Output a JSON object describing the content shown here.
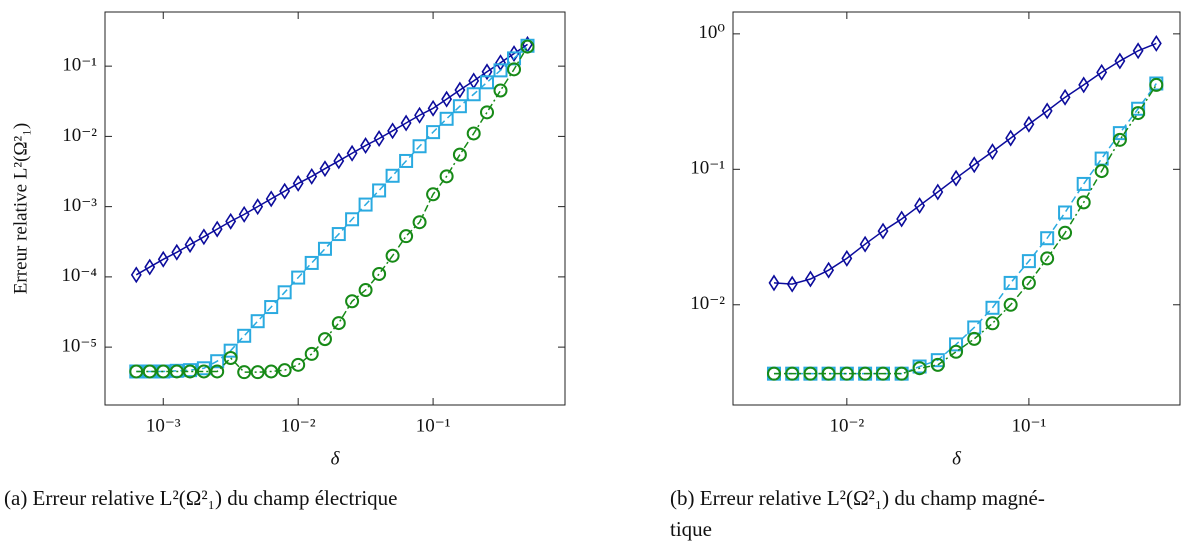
{
  "chart_data": [
    {
      "type": "line",
      "xlabel": "δ",
      "ylabel": "Erreur relative L²(Ω²₁)",
      "caption": [
        "(a)  Erreur relative L²(Ω²₁) du champ électrique"
      ],
      "log_x": true,
      "log_y": true,
      "xlim": [
        0.00037,
        0.95
      ],
      "ylim": [
        1.5e-06,
        0.59
      ],
      "xticks": [
        {
          "value": 0.001,
          "label": "10⁻³"
        },
        {
          "value": 0.01,
          "label": "10⁻²"
        },
        {
          "value": 0.1,
          "label": "10⁻¹"
        }
      ],
      "yticks": [
        {
          "value": 1e-05,
          "label": "10⁻⁵"
        },
        {
          "value": 0.0001,
          "label": "10⁻⁴"
        },
        {
          "value": 0.001,
          "label": "10⁻³"
        },
        {
          "value": 0.01,
          "label": "10⁻²"
        },
        {
          "value": 0.1,
          "label": "10⁻¹"
        }
      ],
      "x": [
        0.000631,
        0.000794,
        0.001,
        0.00126,
        0.00158,
        0.002,
        0.00251,
        0.00316,
        0.00398,
        0.00501,
        0.00631,
        0.00794,
        0.01,
        0.0126,
        0.0158,
        0.02,
        0.0251,
        0.0316,
        0.0398,
        0.0501,
        0.0631,
        0.0794,
        0.1,
        0.126,
        0.158,
        0.2,
        0.251,
        0.316,
        0.398,
        0.501
      ],
      "series": [
        {
          "color": "#0c0c9c",
          "marker": "diamond",
          "dash": "solid",
          "values": [
            0.000107,
            0.000138,
            0.000178,
            0.000224,
            0.000288,
            0.000372,
            0.000479,
            0.000617,
            0.000776,
            0.001,
            0.00129,
            0.00166,
            0.00214,
            0.00269,
            0.00347,
            0.00447,
            0.00575,
            0.00741,
            0.00933,
            0.012,
            0.0155,
            0.02,
            0.0251,
            0.0339,
            0.0457,
            0.0617,
            0.0832,
            0.112,
            0.151,
            0.204
          ]
        },
        {
          "color": "#2aaae0",
          "marker": "square",
          "dash": "dashed",
          "values": [
            4.5e-06,
            4.5e-06,
            4.5e-06,
            4.6e-06,
            4.7e-06,
            5e-06,
            6.3e-06,
            8.9e-06,
            1.45e-05,
            2.34e-05,
            3.72e-05,
            6.03e-05,
            9.77e-05,
            0.000158,
            0.000251,
            0.000407,
            0.000661,
            0.00107,
            0.0017,
            0.00275,
            0.00447,
            0.00724,
            0.0115,
            0.0178,
            0.0269,
            0.0398,
            0.0589,
            0.0871,
            0.129,
            0.195
          ]
        },
        {
          "color": "#178a17",
          "marker": "circle",
          "dash": "dashdot",
          "values": [
            4.5e-06,
            4.5e-06,
            4.5e-06,
            4.5e-06,
            4.5e-06,
            4.5e-06,
            4.5e-06,
            7e-06,
            4.4e-06,
            4.4e-06,
            4.5e-06,
            4.7e-06,
            5.6e-06,
            8e-06,
            1.3e-05,
            2.2e-05,
            4.5e-05,
            6.5e-05,
            0.00011,
            0.0002,
            0.00038,
            0.0006,
            0.0015,
            0.0027,
            0.0055,
            0.011,
            0.022,
            0.045,
            0.09,
            0.19
          ]
        }
      ]
    },
    {
      "type": "line",
      "xlabel": "δ",
      "caption": [
        "(b)  Erreur relative L²(Ω²₁) du champ magné-",
        "tique"
      ],
      "log_x": true,
      "log_y": true,
      "xlim": [
        0.00237,
        0.676
      ],
      "ylim": [
        0.00182,
        1.45
      ],
      "xticks": [
        {
          "value": 0.01,
          "label": "10⁻²"
        },
        {
          "value": 0.1,
          "label": "10⁻¹"
        }
      ],
      "yticks": [
        {
          "value": 0.01,
          "label": "10⁻²"
        },
        {
          "value": 0.1,
          "label": "10⁻¹"
        },
        {
          "value": 1,
          "label": "10⁰"
        }
      ],
      "x": [
        0.00398,
        0.00501,
        0.00631,
        0.00794,
        0.01,
        0.0126,
        0.0158,
        0.02,
        0.0251,
        0.0316,
        0.0398,
        0.0501,
        0.0631,
        0.0794,
        0.1,
        0.126,
        0.158,
        0.2,
        0.251,
        0.316,
        0.398,
        0.501
      ],
      "series": [
        {
          "color": "#0c0c9c",
          "marker": "diamond",
          "dash": "solid",
          "values": [
            0.0145,
            0.0142,
            0.0155,
            0.018,
            0.022,
            0.028,
            0.035,
            0.043,
            0.054,
            0.068,
            0.086,
            0.108,
            0.135,
            0.17,
            0.215,
            0.27,
            0.34,
            0.42,
            0.52,
            0.63,
            0.75,
            0.85
          ]
        },
        {
          "color": "#2aaae0",
          "marker": "square",
          "dash": "dashed",
          "values": [
            0.0031,
            0.0031,
            0.0031,
            0.0031,
            0.0031,
            0.0031,
            0.0031,
            0.0031,
            0.0035,
            0.0039,
            0.0051,
            0.0068,
            0.0095,
            0.0145,
            0.021,
            0.031,
            0.048,
            0.078,
            0.12,
            0.185,
            0.28,
            0.43
          ]
        },
        {
          "color": "#178a17",
          "marker": "circle",
          "dash": "dashdot",
          "values": [
            0.0031,
            0.0031,
            0.0031,
            0.0031,
            0.0031,
            0.0031,
            0.0031,
            0.0031,
            0.0034,
            0.0036,
            0.0045,
            0.0056,
            0.0073,
            0.01,
            0.0145,
            0.022,
            0.034,
            0.057,
            0.097,
            0.165,
            0.26,
            0.42
          ]
        }
      ]
    }
  ]
}
